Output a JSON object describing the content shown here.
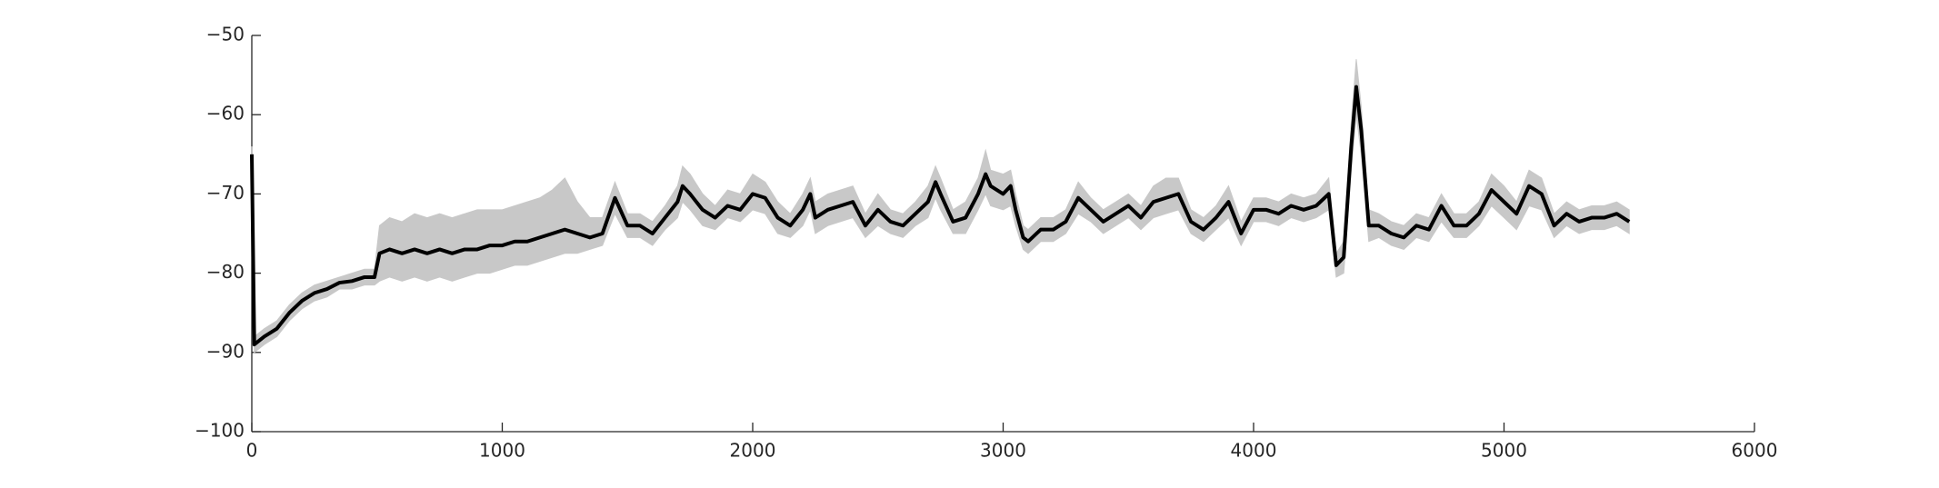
{
  "chart_data": {
    "type": "line",
    "x": [
      0,
      10,
      50,
      100,
      150,
      200,
      250,
      300,
      350,
      400,
      450,
      490,
      510,
      550,
      600,
      650,
      700,
      750,
      800,
      850,
      900,
      950,
      1000,
      1050,
      1100,
      1150,
      1200,
      1250,
      1300,
      1350,
      1400,
      1450,
      1500,
      1550,
      1600,
      1650,
      1700,
      1720,
      1750,
      1800,
      1850,
      1900,
      1950,
      2000,
      2050,
      2100,
      2150,
      2200,
      2230,
      2250,
      2300,
      2350,
      2400,
      2450,
      2500,
      2550,
      2600,
      2650,
      2700,
      2730,
      2750,
      2800,
      2850,
      2900,
      2930,
      2950,
      3000,
      3030,
      3050,
      3080,
      3100,
      3150,
      3200,
      3250,
      3300,
      3350,
      3400,
      3450,
      3500,
      3550,
      3600,
      3650,
      3700,
      3750,
      3800,
      3850,
      3900,
      3950,
      4000,
      4050,
      4100,
      4150,
      4200,
      4250,
      4300,
      4330,
      4360,
      4390,
      4410,
      4430,
      4460,
      4500,
      4550,
      4600,
      4650,
      4700,
      4750,
      4800,
      4850,
      4900,
      4950,
      5000,
      5050,
      5100,
      5150,
      5200,
      5250,
      5300,
      5350,
      5400,
      5450,
      5500
    ],
    "series": [
      {
        "color": "#000000",
        "values": [
          -65,
          -89,
          -88,
          -87,
          -85,
          -83.5,
          -82.5,
          -82,
          -81.2,
          -81,
          -80.5,
          -80.5,
          -77.5,
          -77,
          -77.5,
          -77,
          -77.5,
          -77,
          -77.5,
          -77,
          -77,
          -76.5,
          -76.5,
          -76,
          -76,
          -75.5,
          -75,
          -74.5,
          -75,
          -75.5,
          -75,
          -70.5,
          -74,
          -74,
          -75,
          -73,
          -71,
          -69,
          -70,
          -72,
          -73,
          -71.5,
          -72,
          -70,
          -70.5,
          -73,
          -74,
          -72,
          -70,
          -73,
          -72,
          -71.5,
          -71,
          -74,
          -72,
          -73.5,
          -74,
          -72.5,
          -71,
          -68.5,
          -70,
          -73.5,
          -73,
          -70,
          -67.5,
          -69,
          -70,
          -69,
          -72,
          -75.5,
          -76,
          -74.5,
          -74.5,
          -73.5,
          -70.5,
          -72,
          -73.5,
          -72.5,
          -71.5,
          -73,
          -71,
          -70.5,
          -70,
          -73.5,
          -74.5,
          -73,
          -71,
          -75,
          -72,
          -72,
          -72.5,
          -71.5,
          -72,
          -71.5,
          -70,
          -79,
          -78,
          -64,
          -56.5,
          -62,
          -74,
          -74,
          -75,
          -75.5,
          -74,
          -74.5,
          -71.5,
          -74,
          -74,
          -72.5,
          -69.5,
          -71,
          -72.5,
          -69,
          -70,
          -74,
          -72.5,
          -73.5,
          -73,
          -73,
          -72.5,
          -73.5
        ]
      }
    ],
    "band": {
      "color": "#c8c8c8",
      "lower": [
        -66,
        -90,
        -89,
        -88,
        -86,
        -84.5,
        -83.5,
        -83,
        -82,
        -82,
        -81.5,
        -81.5,
        -81,
        -80.5,
        -81,
        -80.5,
        -81,
        -80.5,
        -81,
        -80.5,
        -80,
        -80,
        -79.5,
        -79,
        -79,
        -78.5,
        -78,
        -77.5,
        -77.5,
        -77,
        -76.5,
        -72.5,
        -75.5,
        -75.5,
        -76.5,
        -74.5,
        -73,
        -71,
        -72,
        -74,
        -74.5,
        -73,
        -73.5,
        -72,
        -72.5,
        -75,
        -75.5,
        -74,
        -72,
        -75,
        -74,
        -73.5,
        -73,
        -75.5,
        -74,
        -75,
        -75.5,
        -74,
        -73,
        -70.5,
        -72,
        -75,
        -75,
        -72,
        -70,
        -71.5,
        -72,
        -71.5,
        -74,
        -77,
        -77.5,
        -76,
        -76,
        -75,
        -72.5,
        -73.5,
        -75,
        -74,
        -73,
        -74.5,
        -73,
        -72.5,
        -72,
        -75,
        -76,
        -74.5,
        -73,
        -76.5,
        -73.5,
        -73.5,
        -74,
        -73,
        -73.5,
        -73,
        -72,
        -80.5,
        -80,
        -67,
        -60,
        -65,
        -76,
        -75.5,
        -76.5,
        -77,
        -75.5,
        -76,
        -73.5,
        -75.5,
        -75.5,
        -74,
        -71.5,
        -73,
        -74.5,
        -71.5,
        -72,
        -75.5,
        -74,
        -75,
        -74.5,
        -74.5,
        -74,
        -75
      ],
      "upper": [
        -64,
        -88,
        -87,
        -86,
        -84,
        -82.5,
        -81.5,
        -81,
        -80.5,
        -80,
        -79.5,
        -79.5,
        -74,
        -73,
        -73.5,
        -72.5,
        -73,
        -72.5,
        -73,
        -72.5,
        -72,
        -72,
        -72,
        -71.5,
        -71,
        -70.5,
        -69.5,
        -68,
        -71,
        -73,
        -73,
        -68.5,
        -72.5,
        -72.5,
        -73.5,
        -71.5,
        -69,
        -66.5,
        -67.5,
        -70,
        -71.5,
        -69.5,
        -70,
        -67.5,
        -68.5,
        -71,
        -72.5,
        -70,
        -68,
        -71,
        -70,
        -69.5,
        -69,
        -72.5,
        -70,
        -72,
        -72.5,
        -71,
        -69,
        -66.5,
        -68,
        -72,
        -71,
        -68,
        -64.5,
        -67,
        -67.5,
        -67,
        -70,
        -74,
        -74.5,
        -73,
        -73,
        -72,
        -68.5,
        -70.5,
        -72,
        -71,
        -70,
        -71.5,
        -69,
        -68,
        -68,
        -72,
        -73,
        -71.5,
        -69,
        -73.5,
        -70.5,
        -70.5,
        -71,
        -70,
        -70.5,
        -70,
        -68,
        -77.5,
        -76,
        -61,
        -53,
        -59,
        -72,
        -72.5,
        -73.5,
        -74,
        -72.5,
        -73,
        -70,
        -72.5,
        -72.5,
        -71,
        -67.5,
        -69,
        -71,
        -67,
        -68,
        -72.5,
        -71,
        -72,
        -71.5,
        -71.5,
        -71,
        -72
      ]
    },
    "xlim": [
      0,
      6000
    ],
    "xticks": [
      0,
      1000,
      2000,
      3000,
      4000,
      5000,
      6000
    ],
    "ylim": [
      -100,
      -50
    ],
    "yticks": [
      {
        "value": -100,
        "label": "−100"
      },
      {
        "value": -90,
        "label": "−90"
      },
      {
        "value": -80,
        "label": "−80"
      },
      {
        "value": -70,
        "label": "−70"
      },
      {
        "value": -60,
        "label": "−60"
      },
      {
        "value": -50,
        "label": "−50"
      }
    ]
  }
}
